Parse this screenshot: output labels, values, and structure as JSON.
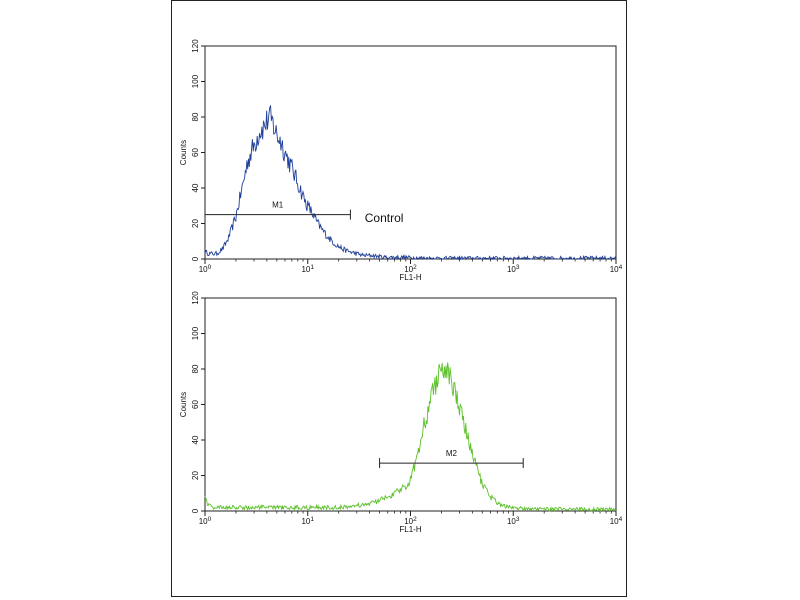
{
  "chart_data": [
    {
      "type": "line",
      "title": "",
      "xlabel": "FL1-H",
      "ylabel": "Counts",
      "x_scale": "log",
      "xlim": [
        1,
        10000
      ],
      "ylim": [
        0,
        120
      ],
      "x_ticks": [
        {
          "value": 1,
          "base": "10",
          "exp": "0"
        },
        {
          "value": 10,
          "base": "10",
          "exp": "1"
        },
        {
          "value": 100,
          "base": "10",
          "exp": "2"
        },
        {
          "value": 1000,
          "base": "10",
          "exp": "3"
        },
        {
          "value": 10000,
          "base": "10",
          "exp": "4"
        }
      ],
      "y_ticks": [
        "0",
        "20",
        "40",
        "60",
        "80",
        "100",
        "120"
      ],
      "grid": false,
      "color": "#1f3f9a",
      "series": [
        {
          "x": [
            1.0,
            1.1,
            1.3,
            1.5,
            1.7,
            2.0,
            2.3,
            2.6,
            3.0,
            3.4,
            3.8,
            4.2,
            4.6,
            5.0,
            5.5,
            6.0,
            6.8,
            7.6,
            8.5,
            9.5,
            11,
            12.5,
            14,
            16,
            18,
            20,
            23,
            26,
            30,
            35,
            42,
            55,
            80,
            150,
            400,
            1000,
            3000,
            10000
          ],
          "y": [
            4,
            3,
            3,
            6,
            12,
            24,
            40,
            55,
            64,
            72,
            75,
            80,
            76,
            70,
            66,
            60,
            53,
            46,
            39,
            32,
            26,
            20,
            16,
            12,
            9,
            7,
            5,
            4,
            3,
            2,
            2,
            1,
            1,
            0.5,
            0.5,
            0.5,
            0.5,
            0.5
          ]
        }
      ],
      "markers": [
        {
          "label": "M1",
          "x1": 1.0,
          "x2": 26,
          "y": 25
        }
      ],
      "annotations": [
        {
          "text": "Control",
          "x": 30,
          "y": 23
        }
      ]
    },
    {
      "type": "line",
      "title": "",
      "xlabel": "FL1-H",
      "ylabel": "Counts",
      "x_scale": "log",
      "xlim": [
        1,
        10000
      ],
      "ylim": [
        0,
        120
      ],
      "x_ticks": [
        {
          "value": 1,
          "base": "10",
          "exp": "0"
        },
        {
          "value": 10,
          "base": "10",
          "exp": "1"
        },
        {
          "value": 100,
          "base": "10",
          "exp": "2"
        },
        {
          "value": 1000,
          "base": "10",
          "exp": "3"
        },
        {
          "value": 10000,
          "base": "10",
          "exp": "4"
        }
      ],
      "y_ticks": [
        "0",
        "20",
        "40",
        "60",
        "80",
        "100",
        "120"
      ],
      "grid": false,
      "color": "#5cc12a",
      "series": [
        {
          "x": [
            1.0,
            1.05,
            1.2,
            2,
            5,
            10,
            20,
            30,
            40,
            50,
            60,
            70,
            80,
            90,
            100,
            115,
            130,
            150,
            170,
            190,
            210,
            240,
            270,
            300,
            340,
            380,
            430,
            480,
            540,
            600,
            700,
            800,
            1000,
            1300,
            1800,
            3000,
            10000
          ],
          "y": [
            10,
            4,
            2,
            2,
            2,
            2,
            2,
            3,
            4,
            6,
            8,
            10,
            12,
            14,
            18,
            30,
            45,
            58,
            70,
            78,
            82,
            78,
            68,
            58,
            46,
            36,
            26,
            18,
            12,
            8,
            5,
            3,
            2,
            1,
            1,
            1,
            1
          ]
        }
      ],
      "markers": [
        {
          "label": "M2",
          "x1": 50,
          "x2": 1250,
          "y": 27
        }
      ],
      "annotations": []
    }
  ]
}
